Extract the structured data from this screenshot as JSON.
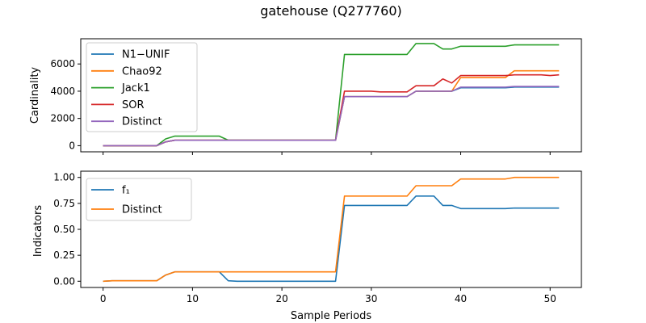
{
  "chart_data": {
    "title": "gatehouse (Q277760)",
    "xlabel": "Sample Periods",
    "xlim": [
      -2.5,
      53.5
    ],
    "xticks": [
      0,
      10,
      20,
      30,
      40,
      50
    ],
    "x": [
      0,
      1,
      2,
      3,
      4,
      5,
      6,
      7,
      8,
      9,
      10,
      11,
      12,
      13,
      14,
      15,
      16,
      17,
      18,
      19,
      20,
      21,
      22,
      23,
      24,
      25,
      26,
      27,
      28,
      29,
      30,
      31,
      32,
      33,
      34,
      35,
      36,
      37,
      38,
      39,
      40,
      41,
      42,
      43,
      44,
      45,
      46,
      47,
      48,
      49,
      50,
      51
    ],
    "panels": [
      {
        "type": "line",
        "ylabel": "Cardinality",
        "ylim": [
          -450,
          7850
        ],
        "yticks": [
          0,
          2000,
          4000,
          6000
        ],
        "legend_position": "upper-left",
        "series": [
          {
            "name": "N1−UNIF",
            "color": "#1f77b4",
            "values": [
              0,
              0,
              0,
              0,
              0,
              0,
              0,
              280,
              400,
              400,
              400,
              400,
              400,
              400,
              400,
              400,
              400,
              400,
              400,
              400,
              400,
              400,
              400,
              400,
              400,
              400,
              400,
              3600,
              3600,
              3600,
              3600,
              3600,
              3600,
              3600,
              3600,
              4000,
              4000,
              4000,
              4000,
              4000,
              4250,
              4250,
              4250,
              4250,
              4250,
              4250,
              4300,
              4300,
              4300,
              4300,
              4300,
              4300
            ]
          },
          {
            "name": "Chao92",
            "color": "#ff7f0e",
            "values": [
              0,
              0,
              0,
              0,
              0,
              0,
              0,
              280,
              400,
              400,
              400,
              400,
              400,
              400,
              400,
              400,
              400,
              400,
              400,
              400,
              400,
              400,
              400,
              400,
              400,
              400,
              400,
              3600,
              3600,
              3600,
              3600,
              3600,
              3600,
              3600,
              3600,
              4000,
              4000,
              4000,
              4000,
              4000,
              5000,
              5000,
              5000,
              5000,
              5000,
              5000,
              5500,
              5500,
              5500,
              5500,
              5500,
              5500
            ]
          },
          {
            "name": "Jack1",
            "color": "#2ca02c",
            "values": [
              0,
              0,
              0,
              0,
              0,
              0,
              0,
              500,
              700,
              700,
              700,
              700,
              700,
              700,
              400,
              400,
              400,
              400,
              400,
              400,
              400,
              400,
              400,
              400,
              400,
              400,
              400,
              6700,
              6700,
              6700,
              6700,
              6700,
              6700,
              6700,
              6700,
              7500,
              7500,
              7500,
              7100,
              7100,
              7300,
              7300,
              7300,
              7300,
              7300,
              7300,
              7400,
              7400,
              7400,
              7400,
              7400,
              7400
            ]
          },
          {
            "name": "SOR",
            "color": "#d62728",
            "values": [
              0,
              0,
              0,
              0,
              0,
              0,
              0,
              280,
              400,
              400,
              400,
              400,
              400,
              400,
              400,
              400,
              400,
              400,
              400,
              400,
              400,
              400,
              400,
              400,
              400,
              400,
              400,
              4000,
              4000,
              4000,
              4000,
              3950,
              3950,
              3950,
              3950,
              4400,
              4400,
              4400,
              4900,
              4600,
              5150,
              5150,
              5150,
              5150,
              5150,
              5150,
              5200,
              5200,
              5200,
              5200,
              5150,
              5200
            ]
          },
          {
            "name": "Distinct",
            "color": "#9467bd",
            "values": [
              0,
              0,
              0,
              0,
              0,
              0,
              0,
              280,
              400,
              400,
              400,
              400,
              400,
              400,
              400,
              400,
              400,
              400,
              400,
              400,
              400,
              400,
              400,
              400,
              400,
              400,
              400,
              3600,
              3600,
              3600,
              3600,
              3600,
              3600,
              3600,
              3600,
              4000,
              4000,
              4000,
              4000,
              4000,
              4300,
              4300,
              4300,
              4300,
              4300,
              4300,
              4350,
              4350,
              4350,
              4350,
              4350,
              4350
            ]
          }
        ]
      },
      {
        "type": "line",
        "ylabel": "Indicators",
        "ylim": [
          -0.06,
          1.06
        ],
        "yticks": [
          0.0,
          0.25,
          0.5,
          0.75,
          1.0
        ],
        "ytick_labels": [
          "0.00",
          "0.25",
          "0.50",
          "0.75",
          "1.00"
        ],
        "legend_position": "upper-left",
        "series": [
          {
            "name": "f₁",
            "color": "#1f77b4",
            "values": [
              0,
              0.005,
              0.005,
              0.005,
              0.005,
              0.005,
              0.005,
              0.06,
              0.09,
              0.09,
              0.09,
              0.09,
              0.09,
              0.09,
              0.005,
              0,
              0,
              0,
              0,
              0,
              0,
              0,
              0,
              0,
              0,
              0,
              0,
              0.73,
              0.73,
              0.73,
              0.73,
              0.73,
              0.73,
              0.73,
              0.73,
              0.82,
              0.82,
              0.82,
              0.73,
              0.73,
              0.7,
              0.7,
              0.7,
              0.7,
              0.7,
              0.7,
              0.705,
              0.705,
              0.705,
              0.705,
              0.705,
              0.705
            ]
          },
          {
            "name": "Distinct",
            "color": "#ff7f0e",
            "values": [
              0,
              0.005,
              0.005,
              0.005,
              0.005,
              0.005,
              0.005,
              0.06,
              0.09,
              0.09,
              0.09,
              0.09,
              0.09,
              0.09,
              0.09,
              0.09,
              0.09,
              0.09,
              0.09,
              0.09,
              0.09,
              0.09,
              0.09,
              0.09,
              0.09,
              0.09,
              0.09,
              0.82,
              0.82,
              0.82,
              0.82,
              0.82,
              0.82,
              0.82,
              0.82,
              0.92,
              0.92,
              0.92,
              0.92,
              0.92,
              0.985,
              0.985,
              0.985,
              0.985,
              0.985,
              0.985,
              1.0,
              1.0,
              1.0,
              1.0,
              1.0,
              1.0
            ]
          }
        ]
      }
    ]
  }
}
